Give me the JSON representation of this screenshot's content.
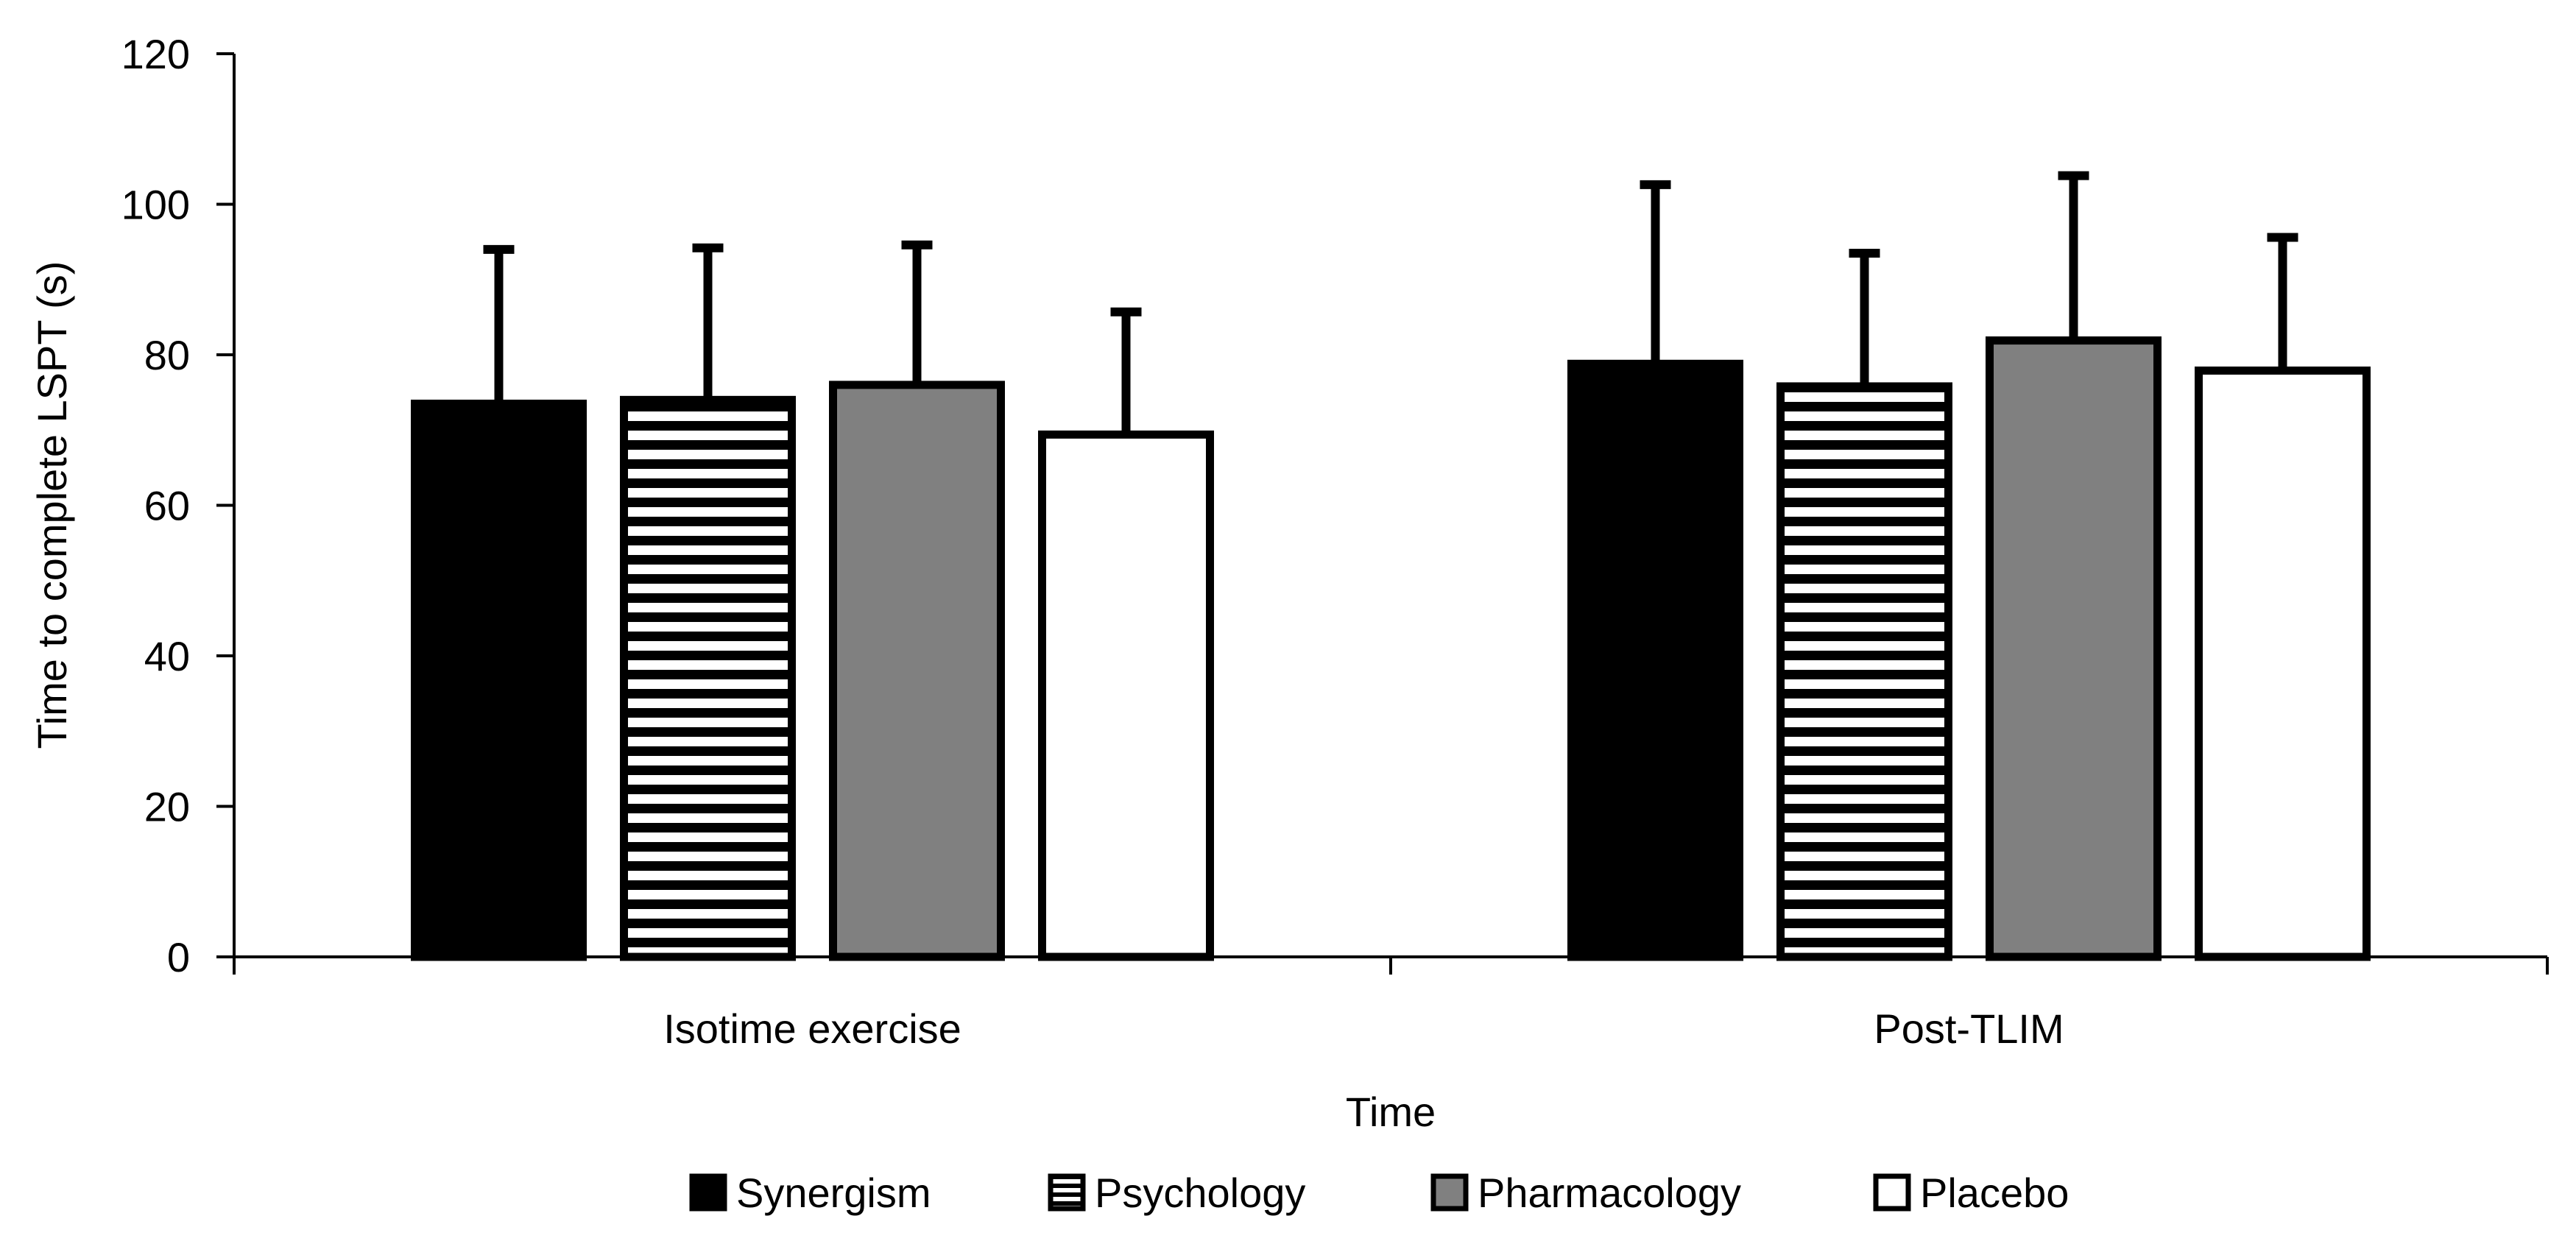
{
  "chart_data": {
    "type": "bar",
    "categories": [
      "Isotime exercise",
      "Post-TLIM"
    ],
    "series": [
      {
        "name": "Synergism",
        "values": [
          73.5,
          78.8
        ],
        "errors": [
          20.5,
          23.8
        ],
        "fill": "#000000",
        "pattern": "solid"
      },
      {
        "name": "Psychology",
        "values": [
          74.0,
          75.8
        ],
        "errors": [
          20.2,
          17.7
        ],
        "fill": "#ffffff",
        "pattern": "horizontal-lines"
      },
      {
        "name": "Pharmacology",
        "values": [
          76.0,
          81.9
        ],
        "errors": [
          18.6,
          21.9
        ],
        "fill": "#808080",
        "pattern": "solid"
      },
      {
        "name": "Placebo",
        "values": [
          69.4,
          77.9
        ],
        "errors": [
          16.3,
          17.7
        ],
        "fill": "#ffffff",
        "pattern": "solid"
      }
    ],
    "yticks": [
      "0",
      "20",
      "40",
      "60",
      "80",
      "100",
      "120"
    ],
    "ylim": [
      0,
      120
    ],
    "xlabel": "Time",
    "ylabel": "Time  to complete LSPT (s)",
    "grid": false,
    "legend_position": "bottom"
  }
}
